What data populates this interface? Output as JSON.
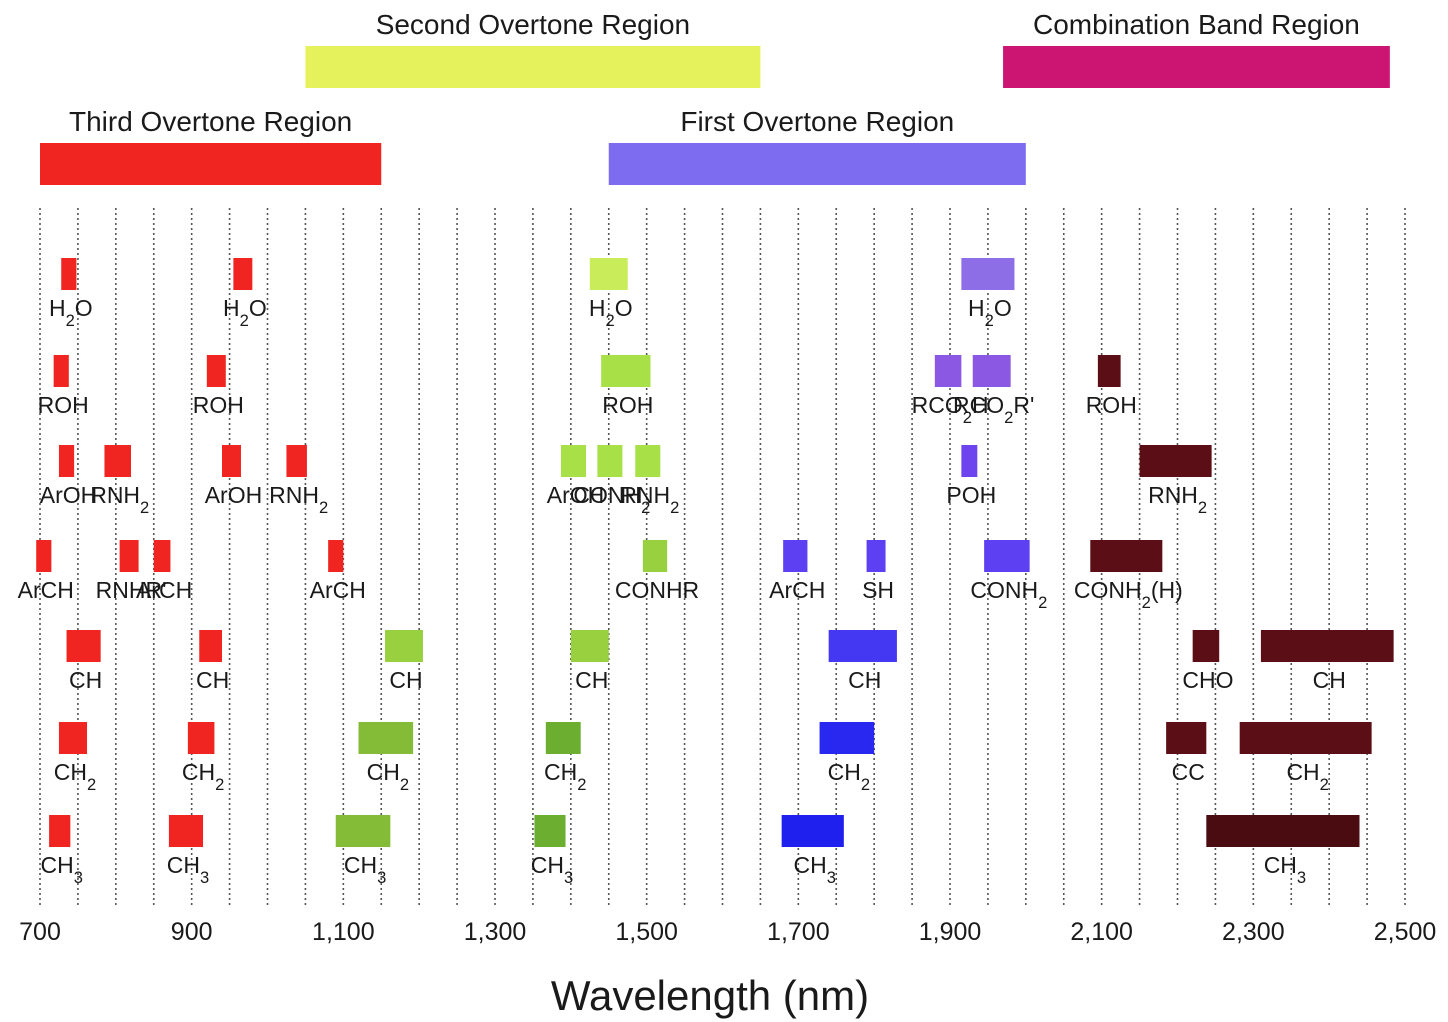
{
  "chart_data": {
    "type": "range",
    "xlabel": "Wavelength (nm)",
    "xlim": [
      700,
      2500
    ],
    "x_ticks": [
      700,
      900,
      1100,
      1300,
      1500,
      1700,
      1900,
      2100,
      2300,
      2500
    ],
    "x_tick_labels": [
      "700",
      "900",
      "1,100",
      "1,300",
      "1,500",
      "1,700",
      "1,900",
      "2,100",
      "2,300",
      "2,500"
    ],
    "grid": true,
    "grid_step": 50,
    "colors": {
      "third": "#f02420",
      "second": "#e6f25c",
      "first": "#7d6cf0",
      "combination": "#cc1472"
    },
    "regions": [
      {
        "label": "Third Overtone Region",
        "start": 700,
        "end": 1150,
        "color": "#f02420",
        "row": 2
      },
      {
        "label": "Second Overtone Region",
        "start": 1050,
        "end": 1650,
        "color": "#e6f25c",
        "row": 1
      },
      {
        "label": "First Overtone Region",
        "start": 1450,
        "end": 2000,
        "color": "#7d6cf0",
        "row": 2
      },
      {
        "label": "Combination Band Region",
        "start": 1970,
        "end": 2480,
        "color": "#cc1472",
        "row": 1
      }
    ],
    "rows": [
      {
        "name": "H2O",
        "bands": [
          {
            "start": 728,
            "end": 748,
            "color": "#f02420",
            "label": "H2O"
          },
          {
            "start": 955,
            "end": 980,
            "color": "#f02420",
            "label": "H2O"
          },
          {
            "start": 1425,
            "end": 1475,
            "color": "#c8ec5a",
            "label": "H2O"
          },
          {
            "start": 1915,
            "end": 1985,
            "color": "#8d6ee6",
            "label": "H2O"
          }
        ]
      },
      {
        "name": "ROH",
        "bands": [
          {
            "start": 718,
            "end": 738,
            "color": "#f02420",
            "label": "ROH"
          },
          {
            "start": 920,
            "end": 945,
            "color": "#f02420",
            "label": "ROH"
          },
          {
            "start": 1440,
            "end": 1505,
            "color": "#a8e048",
            "label": "ROH"
          },
          {
            "start": 1880,
            "end": 1915,
            "color": "#8a58e2",
            "label": "RCO2H"
          },
          {
            "start": 1930,
            "end": 1980,
            "color": "#8a58e2",
            "label": "RCO2R'"
          },
          {
            "start": 2095,
            "end": 2125,
            "color": "#5c0e16",
            "label": "ROH"
          }
        ]
      },
      {
        "name": "ArOH",
        "bands": [
          {
            "start": 725,
            "end": 745,
            "color": "#f02420",
            "label": "ArOH"
          },
          {
            "start": 785,
            "end": 820,
            "color": "#f02420",
            "label": "RNH2"
          },
          {
            "start": 940,
            "end": 965,
            "color": "#f02420",
            "label": "ArOH"
          },
          {
            "start": 1025,
            "end": 1052,
            "color": "#f02420",
            "label": "RNH2"
          },
          {
            "start": 1387,
            "end": 1420,
            "color": "#a8e048",
            "label": "ArOH"
          },
          {
            "start": 1435,
            "end": 1468,
            "color": "#a8e048",
            "label": "CONH2"
          },
          {
            "start": 1485,
            "end": 1518,
            "color": "#a8e048",
            "label": "RNH2"
          },
          {
            "start": 1915,
            "end": 1936,
            "color": "#6e44ee",
            "label": "POH"
          },
          {
            "start": 2150,
            "end": 2245,
            "color": "#5c0e16",
            "label": "RNH2"
          }
        ]
      },
      {
        "name": "ArCH",
        "bands": [
          {
            "start": 695,
            "end": 715,
            "color": "#f02420",
            "label": "ArCH"
          },
          {
            "start": 805,
            "end": 830,
            "color": "#f02420",
            "label": "RNHR'"
          },
          {
            "start": 850,
            "end": 872,
            "color": "#f02420",
            "label": "ArCH"
          },
          {
            "start": 1080,
            "end": 1100,
            "color": "#f02420",
            "label": "ArCH"
          },
          {
            "start": 1495,
            "end": 1527,
            "color": "#98d040",
            "label": "CONHR"
          },
          {
            "start": 1680,
            "end": 1712,
            "color": "#5c40f2",
            "label": "ArCH"
          },
          {
            "start": 1790,
            "end": 1815,
            "color": "#5c40f2",
            "label": "SH"
          },
          {
            "start": 1945,
            "end": 2005,
            "color": "#5c40f2",
            "label": "CONH2"
          },
          {
            "start": 2085,
            "end": 2180,
            "color": "#5c0e16",
            "label": "CONH2(H)"
          }
        ]
      },
      {
        "name": "CH",
        "bands": [
          {
            "start": 735,
            "end": 780,
            "color": "#f02420",
            "label": "CH"
          },
          {
            "start": 910,
            "end": 940,
            "color": "#f02420",
            "label": "CH"
          },
          {
            "start": 1155,
            "end": 1205,
            "color": "#98d040",
            "label": "CH"
          },
          {
            "start": 1400,
            "end": 1450,
            "color": "#98d040",
            "label": "CH"
          },
          {
            "start": 1740,
            "end": 1830,
            "color": "#4438f2",
            "label": "CH"
          },
          {
            "start": 2220,
            "end": 2255,
            "color": "#5c0e16",
            "label": "CHO"
          },
          {
            "start": 2310,
            "end": 2485,
            "color": "#5c0e16",
            "label": "CH"
          }
        ]
      },
      {
        "name": "CH2",
        "bands": [
          {
            "start": 725,
            "end": 762,
            "color": "#f02420",
            "label": "CH2"
          },
          {
            "start": 895,
            "end": 930,
            "color": "#f02420",
            "label": "CH2"
          },
          {
            "start": 1120,
            "end": 1192,
            "color": "#84bc38",
            "label": "CH2"
          },
          {
            "start": 1367,
            "end": 1413,
            "color": "#6cae30",
            "label": "CH2"
          },
          {
            "start": 1728,
            "end": 1800,
            "color": "#2828f0",
            "label": "CH2"
          },
          {
            "start": 2185,
            "end": 2238,
            "color": "#5c0e16",
            "label": "CC"
          },
          {
            "start": 2282,
            "end": 2456,
            "color": "#5c0e16",
            "label": "CH2"
          }
        ]
      },
      {
        "name": "CH3",
        "bands": [
          {
            "start": 712,
            "end": 740,
            "color": "#f02420",
            "label": "CH3"
          },
          {
            "start": 870,
            "end": 915,
            "color": "#f02420",
            "label": "CH3"
          },
          {
            "start": 1090,
            "end": 1162,
            "color": "#84bc38",
            "label": "CH3"
          },
          {
            "start": 1352,
            "end": 1393,
            "color": "#6cae30",
            "label": "CH3"
          },
          {
            "start": 1678,
            "end": 1760,
            "color": "#2020ee",
            "label": "CH3"
          },
          {
            "start": 2238,
            "end": 2440,
            "color": "#4a0c10",
            "label": "CH3"
          }
        ]
      }
    ]
  }
}
